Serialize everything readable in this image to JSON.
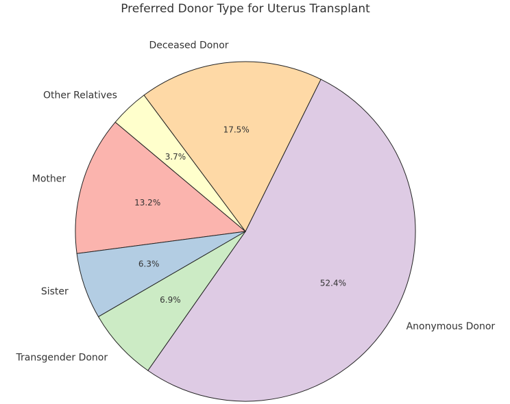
{
  "chart_data": {
    "type": "pie",
    "title": "Preferred Donor Type for Uterus Transplant",
    "categories": [
      "Anonymous Donor",
      "Deceased Donor",
      "Other Relatives",
      "Mother",
      "Sister",
      "Transgender Donor"
    ],
    "values": [
      52.4,
      17.5,
      3.7,
      13.2,
      6.3,
      6.9
    ],
    "value_labels": [
      "52.4%",
      "17.5%",
      "3.7%",
      "13.2%",
      "6.3%",
      "6.9%"
    ],
    "colors": [
      "#decbe4",
      "#fed9a6",
      "#ffffcc",
      "#fbb4ae",
      "#b3cde3",
      "#ccebc5"
    ]
  }
}
